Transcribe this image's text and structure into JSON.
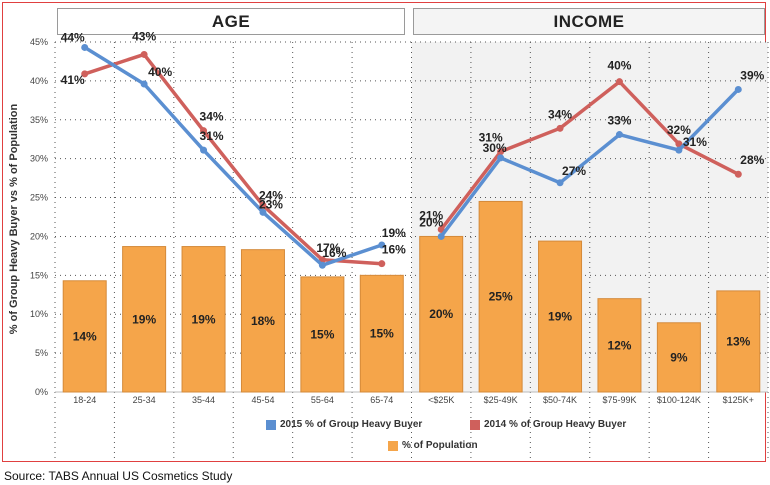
{
  "headers": {
    "age": "AGE",
    "income": "INCOME"
  },
  "chart_data": {
    "type": "bar+line",
    "ylabel": "% of Group Heavy Buyer vs % of Population",
    "ylim": [
      0,
      45
    ],
    "yticks": [
      "0%",
      "5%",
      "10%",
      "15%",
      "20%",
      "25%",
      "30%",
      "35%",
      "40%",
      "45%"
    ],
    "categories": [
      "18-24",
      "25-34",
      "35-44",
      "45-54",
      "55-64",
      "65-74",
      "<$25K",
      "$25-49K",
      "$50-74K",
      "$75-99K",
      "$100-124K",
      "$125K+"
    ],
    "groups": [
      {
        "name": "AGE",
        "categories": [
          "18-24",
          "25-34",
          "35-44",
          "45-54",
          "55-64",
          "65-74"
        ]
      },
      {
        "name": "INCOME",
        "categories": [
          "<$25K",
          "$25-49K",
          "$50-74K",
          "$75-99K",
          "$100-124K",
          "$125K+"
        ]
      }
    ],
    "bars": {
      "name": "% of Population",
      "color": "#f5a54a",
      "values": [
        14.3,
        18.7,
        18.7,
        18.3,
        14.8,
        15.0,
        20.0,
        24.5,
        19.4,
        12.0,
        8.9,
        13.0
      ],
      "labels": [
        "14%",
        "19%",
        "19%",
        "18%",
        "15%",
        "15%",
        "20%",
        "25%",
        "19%",
        "12%",
        "9%",
        "13%"
      ]
    },
    "series": [
      {
        "name": "2015 % of Group Heavy Buyer",
        "color": "#5b8fd1",
        "age": [
          44.3,
          39.6,
          31.1,
          23.1,
          16.3,
          18.9
        ],
        "income": [
          20.0,
          30.1,
          26.9,
          33.1,
          31.1,
          38.9
        ],
        "age_labels": [
          "44%",
          "40%",
          "31%",
          "23%",
          "16%",
          "19%"
        ],
        "income_labels": [
          "20%",
          "30%",
          "27%",
          "33%",
          "31%",
          "39%"
        ]
      },
      {
        "name": "2014 % of Group Heavy Buyer",
        "color": "#cf605c",
        "age": [
          40.9,
          43.4,
          33.6,
          24.0,
          17.0,
          16.5
        ],
        "income": [
          20.9,
          30.9,
          33.9,
          39.9,
          31.9,
          28.0
        ],
        "age_labels": [
          "41%",
          "43%",
          "34%",
          "24%",
          "17%",
          "16%"
        ],
        "income_labels": [
          "21%",
          "31%",
          "34%",
          "40%",
          "32%",
          "28%"
        ]
      }
    ]
  },
  "source": "Source:  TABS Annual US Cosmetics Study"
}
